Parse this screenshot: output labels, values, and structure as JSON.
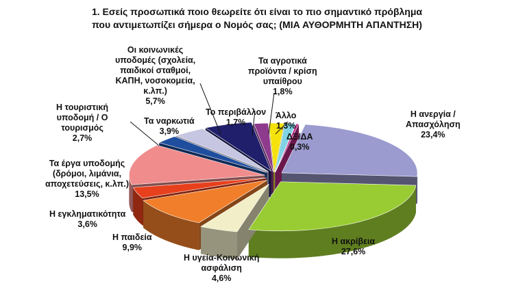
{
  "chart_data": {
    "type": "pie",
    "title": [
      "1. Εσείς προσωπικά ποιο θεωρείτε ότι είναι το πιο σημαντικό πρόβλημα",
      "που αντιμετωπίζει σήμερα ο Νομός σας; (ΜΙΑ ΑΥΘΟΡΜΗΤΗ ΑΠΑΝΤΗΣΗ)"
    ],
    "slices": [
      {
        "label": [
          "Η ανεργία /",
          "Απασχόληση"
        ],
        "value": 23.4,
        "value_label": "23,4%",
        "color": "#9b9bd0"
      },
      {
        "label": [
          "Η ακρίβεια"
        ],
        "value": 27.6,
        "value_label": "27,6%",
        "color": "#99cc33"
      },
      {
        "label": [
          "Η υγεία-Κοινωνική",
          "ασφάλιση"
        ],
        "value": 4.6,
        "value_label": "4,6%",
        "color": "#f2efc8"
      },
      {
        "label": [
          "Η παιδεία"
        ],
        "value": 9.9,
        "value_label": "9,9%",
        "color": "#f07e2a"
      },
      {
        "label": [
          "Η εγκληματικότητα"
        ],
        "value": 3.6,
        "value_label": "3,6%",
        "color": "#e8401c"
      },
      {
        "label": [
          "Τα έργα υποδομής",
          "(δρόμοι, λιμάνια,",
          "αποχετεύσεις, κ.λπ.)"
        ],
        "value": 13.5,
        "value_label": "13,5%",
        "color": "#f08c8c"
      },
      {
        "label": [
          "Η τουριστική",
          "υποδομή / Ο",
          "τουρισμός"
        ],
        "value": 2.7,
        "value_label": "2,7%",
        "color": "#1f4e9e"
      },
      {
        "label": [
          "Τα ναρκωτιά"
        ],
        "value": 3.9,
        "value_label": "3,9%",
        "color": "#c6c6e2"
      },
      {
        "label": [
          "Οι κοινωνικές",
          "υποδομές (σχολεία,",
          "παιδικοί σταθμοί,",
          "ΚΑΠΗ, νοσοκομεία,",
          "κ.λπ.)"
        ],
        "value": 5.7,
        "value_label": "5,7%",
        "color": "#1f1f6b"
      },
      {
        "label": [
          "Το περιβάλλον"
        ],
        "value": 1.7,
        "value_label": "1,7%",
        "color": "#8e3b8e"
      },
      {
        "label": [
          "Τα αγροτικά",
          "προϊόντα / κρίση",
          "υπαίθρου"
        ],
        "value": 1.8,
        "value_label": "1,8%",
        "color": "#f5e20c"
      },
      {
        "label": [
          "Άλλο"
        ],
        "value": 1.3,
        "value_label": "1,3%",
        "color": "#7fd3e3"
      },
      {
        "label": [
          "ΔΞ/ΔΑ"
        ],
        "value": 0.3,
        "value_label": "0,3%",
        "color": "#c02a8a"
      }
    ]
  }
}
